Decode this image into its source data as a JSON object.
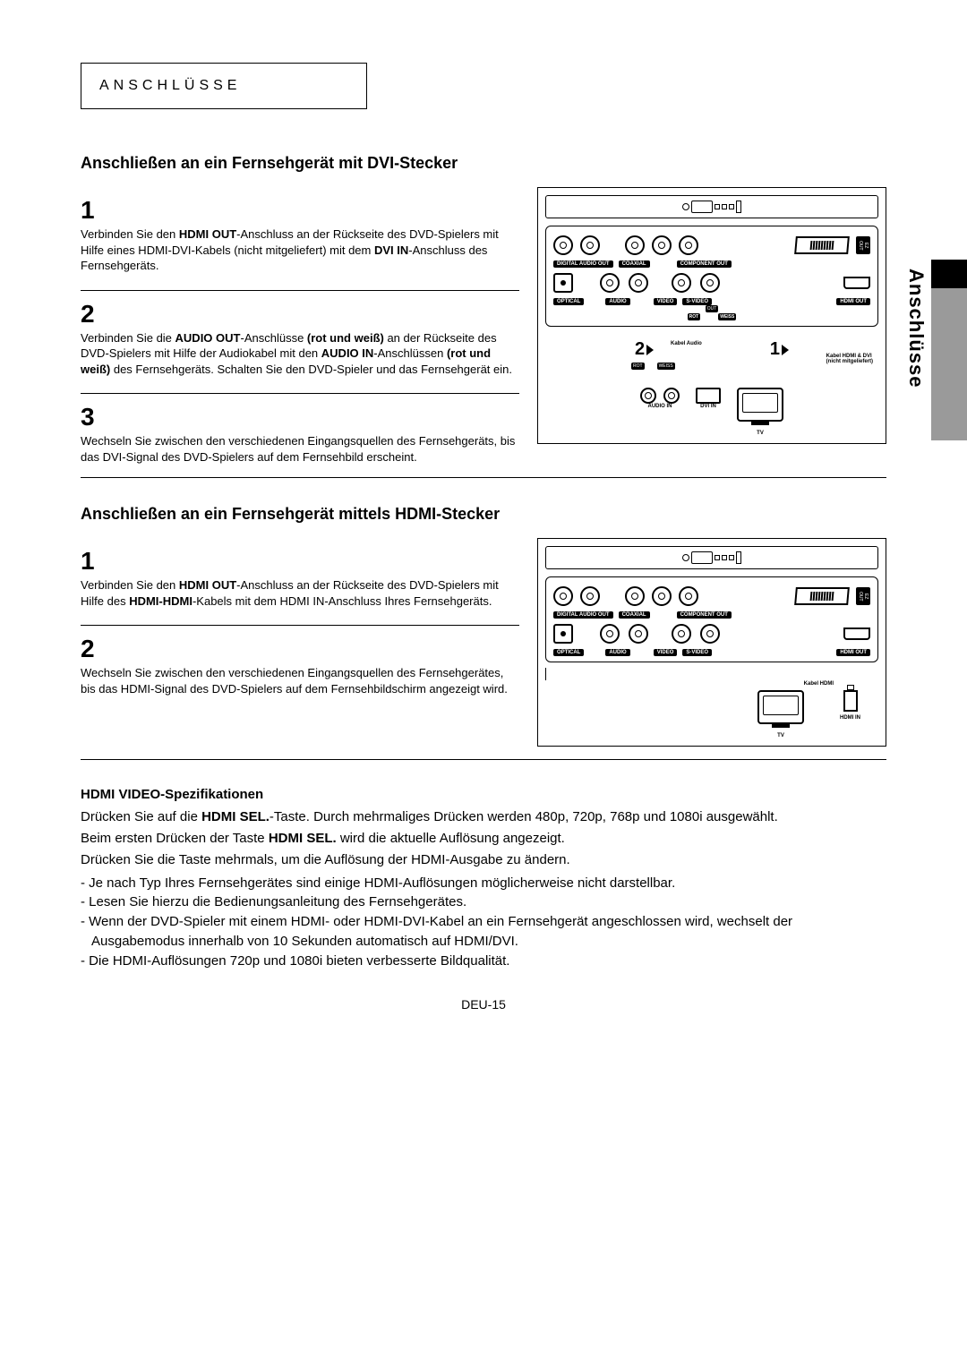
{
  "header": {
    "title": "ANSCHLÜSSE"
  },
  "side": {
    "label": "Anschlüsse"
  },
  "section1": {
    "heading": "Anschließen an ein Fernsehgerät mit DVI-Stecker",
    "steps": [
      {
        "num": "1",
        "html": "Verbinden Sie den <b>HDMI OUT</b>-Anschluss an der Rückseite des DVD-Spielers mit Hilfe eines HDMI-DVI-Kabels (nicht mitgeliefert) mit dem <b>DVI IN</b>-Anschluss des Fernsehgeräts."
      },
      {
        "num": "2",
        "html": "Verbinden Sie die <b>AUDIO OUT</b>-Anschlüsse <b>(rot und weiß)</b> an der Rückseite des DVD-Spielers mit Hilfe der Audiokabel mit den <b>AUDIO IN</b>-Anschlüssen <b>(rot und weiß)</b> des Fernsehgeräts. Schalten Sie den DVD-Spieler und das Fernsehgerät ein."
      },
      {
        "num": "3",
        "html": "Wechseln Sie zwischen den verschiedenen Eingangsquellen des Fernsehgeräts, bis das DVI-Signal des DVD-Spielers auf dem Fernsehbild erscheint."
      }
    ],
    "diagram": {
      "labels": {
        "digital_audio_out": "DIGITAL\nAUDIO OUT",
        "coaxial": "COAXIAL",
        "component_out": "COMPONENT OUT",
        "optical": "OPTICAL",
        "audio": "AUDIO",
        "video": "VIDEO",
        "svideo": "S-VIDEO",
        "hdmi_out": "HDMI OUT",
        "out": "OUT",
        "ez": "EZ\nOUT",
        "rot": "ROT",
        "weiss": "WEISS",
        "kabel_audio": "Kabel Audio",
        "kabel_hdmi_dvi": "Kabel HDMI & DVI\n(nicht mitgeliefert)",
        "tv": "TV",
        "audio_in": "AUDIO IN",
        "dvi_in": "DVI IN",
        "num1": "1",
        "num2": "2"
      }
    }
  },
  "section2": {
    "heading": "Anschließen an ein Fernsehgerät mittels HDMI-Stecker",
    "steps": [
      {
        "num": "1",
        "html": "Verbinden Sie den <b>HDMI OUT</b>-Anschluss an der Rückseite des DVD-Spielers mit Hilfe des <b>HDMI-HDMI</b>-Kabels mit dem HDMI IN-Anschluss Ihres Fernsehgeräts."
      },
      {
        "num": "2",
        "html": "Wechseln Sie zwischen den verschiedenen Eingangsquellen des Fernsehgerätes, bis das HDMI-Signal des DVD-Spielers auf dem Fernsehbildschirm angezeigt wird."
      }
    ],
    "diagram": {
      "labels": {
        "kabel_hdmi": "Kabel HDMI",
        "tv": "TV",
        "hdmi_in": "HDMI IN"
      }
    }
  },
  "specs": {
    "title": "HDMI VIDEO-Spezifikationen",
    "p1_html": "Drücken Sie auf die <b>HDMI SEL.</b>-Taste. Durch mehrmaliges Drücken werden 480p, 720p, 768p und 1080i ausgewählt.",
    "p2_html": "Beim ersten Drücken der Taste <b>HDMI SEL.</b> wird die aktuelle Auflösung angezeigt.",
    "p3": "Drücken Sie die Taste mehrmals, um die Auflösung der HDMI-Ausgabe zu ändern.",
    "bullets": [
      "Je nach Typ Ihres Fernsehgerätes sind einige HDMI-Auflösungen möglicherweise nicht darstellbar.",
      "Lesen Sie hierzu die Bedienungsanleitung des Fernsehgerätes.",
      "Wenn der DVD-Spieler mit einem HDMI- oder HDMI-DVI-Kabel an ein Fernsehgerät angeschlossen wird, wechselt der Ausgabemodus innerhalb von 10 Sekunden automatisch auf HDMI/DVI.",
      "Die HDMI-Auflösungen 720p und 1080i bieten verbesserte Bildqualität."
    ]
  },
  "page_num": "DEU-15"
}
